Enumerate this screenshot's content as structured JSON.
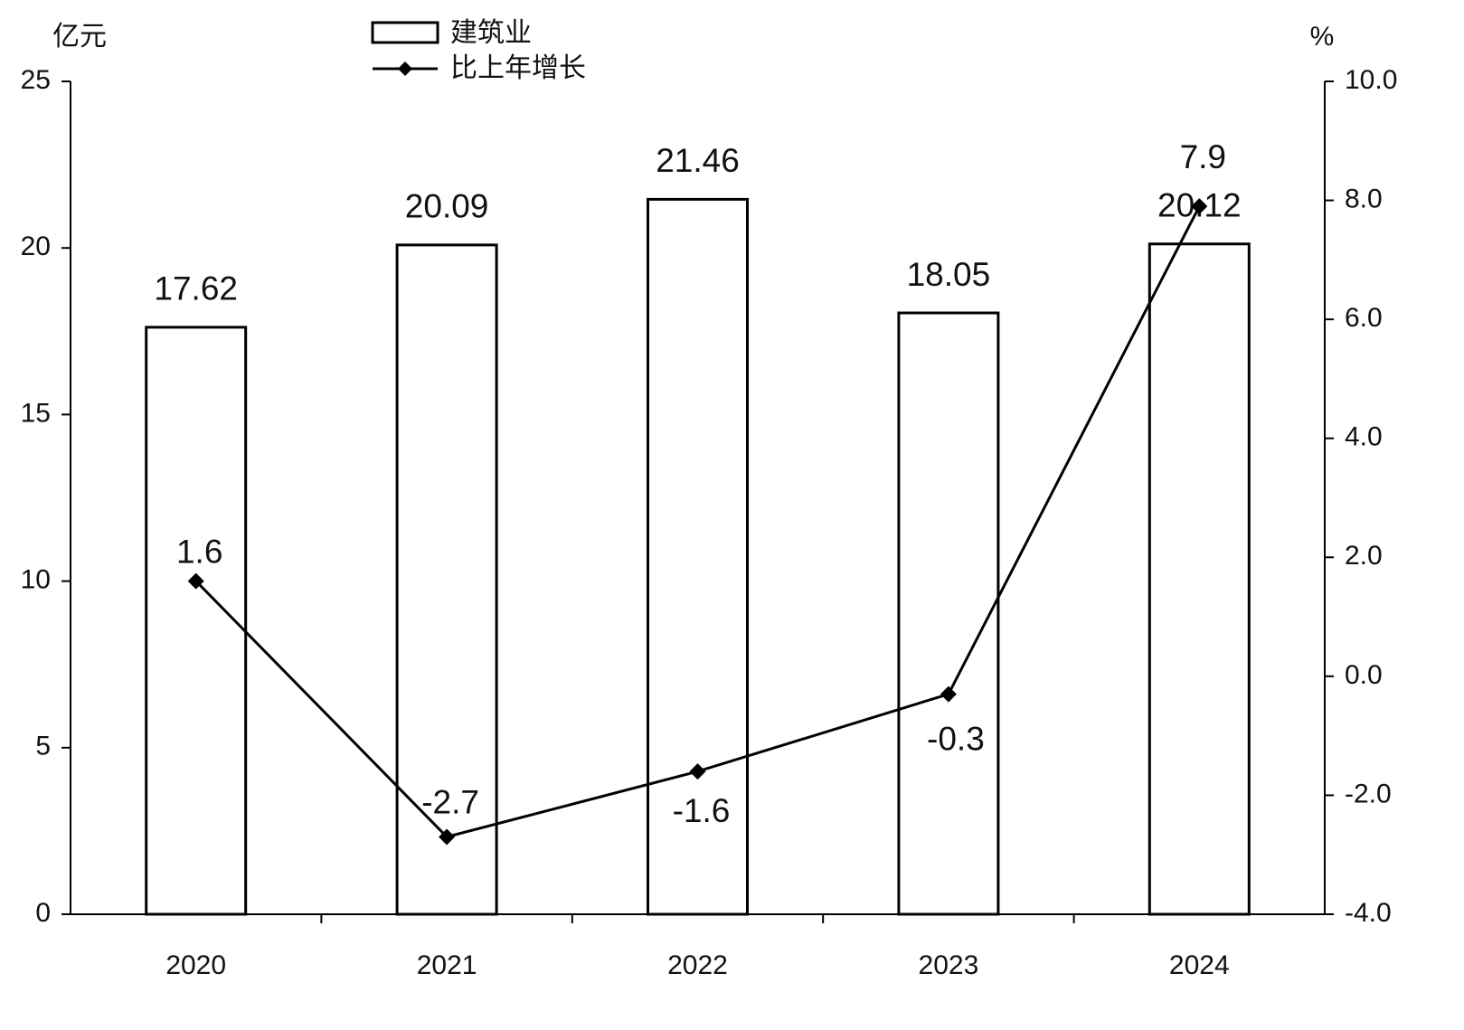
{
  "chart_data": {
    "type": "bar_line",
    "y_label": "亿元",
    "y2_label": "%",
    "categories": [
      "2020",
      "2021",
      "2022",
      "2023",
      "2024"
    ],
    "series": [
      {
        "name": "建筑业",
        "type": "bar",
        "color": "#ffffff",
        "values": [
          17.62,
          20.09,
          21.46,
          18.05,
          20.12
        ]
      },
      {
        "name": "比上年增长",
        "type": "line",
        "axis": "y2",
        "color": "#000000",
        "values": [
          1.6,
          -2.7,
          -1.6,
          -0.3,
          7.9
        ]
      }
    ],
    "ylim": [
      0,
      25
    ],
    "yticks": [
      0,
      5,
      10,
      15,
      20,
      25
    ],
    "y2lim": [
      -4,
      10
    ],
    "y2ticks": [
      {
        "value": -4,
        "label": "-4.0"
      },
      {
        "value": -2,
        "label": "-2.0"
      },
      {
        "value": 0,
        "label": "0.0"
      },
      {
        "value": 2,
        "label": "2.0"
      },
      {
        "value": 4,
        "label": "4.0"
      },
      {
        "value": 6,
        "label": "6.0"
      },
      {
        "value": 8,
        "label": "8.0"
      },
      {
        "value": 10,
        "label": "10.0"
      }
    ],
    "grid": false
  }
}
